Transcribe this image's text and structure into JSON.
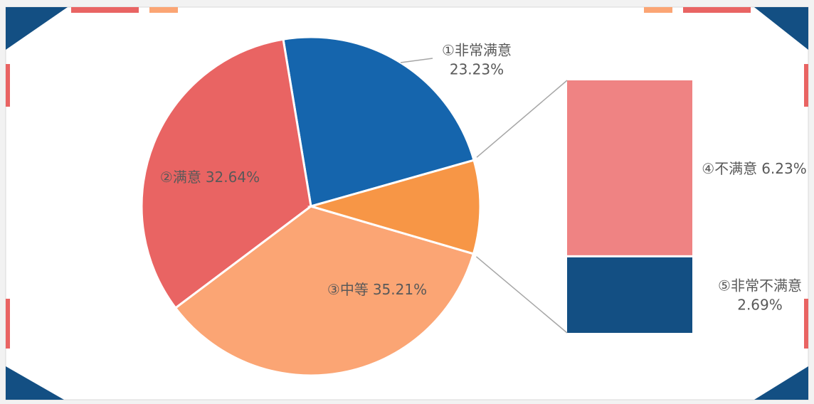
{
  "chart_data": {
    "type": "pie",
    "categories": [
      "①非常满意",
      "②满意",
      "③中等",
      "④不满意",
      "⑤非常不满意"
    ],
    "values": [
      23.23,
      32.64,
      35.21,
      6.23,
      2.69
    ],
    "value_labels": [
      "23.23%",
      "32.64%",
      "35.21%",
      "6.23%",
      "2.69%"
    ],
    "colors": [
      "#1565ad",
      "#e96463",
      "#fba574",
      "#ef8383",
      "#134f83"
    ],
    "other_color": "#f79646"
  }
}
